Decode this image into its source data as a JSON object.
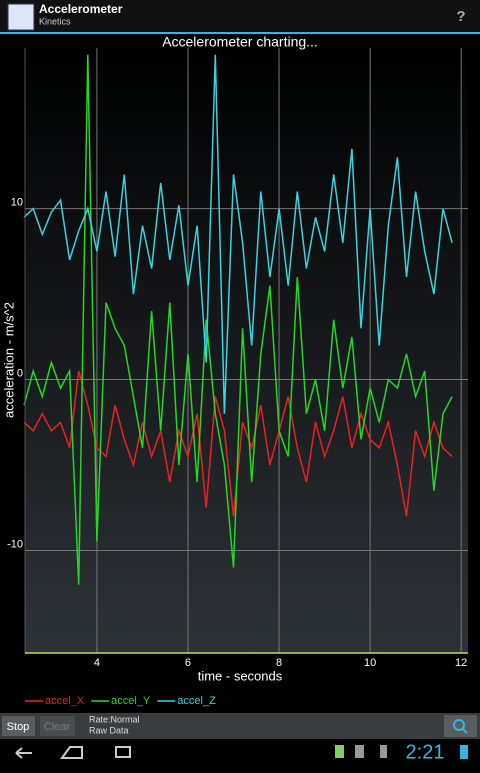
{
  "app_bar": {
    "title": "Accelerometer",
    "subtitle": "Kinetics",
    "help": "?"
  },
  "chart_data": {
    "type": "line",
    "title": "Accelerometer charting...",
    "x_label": "time - seconds",
    "y_label": "acceleration - m/s^2",
    "x": [
      2.4,
      2.6,
      2.8,
      3.0,
      3.2,
      3.4,
      3.6,
      3.8,
      4.0,
      4.2,
      4.4,
      4.6,
      4.8,
      5.0,
      5.2,
      5.4,
      5.6,
      5.8,
      6.0,
      6.2,
      6.4,
      6.6,
      6.8,
      7.0,
      7.2,
      7.4,
      7.6,
      7.8,
      8.0,
      8.2,
      8.4,
      8.6,
      8.8,
      9.0,
      9.2,
      9.4,
      9.6,
      9.8,
      10.0,
      10.2,
      10.4,
      10.6,
      10.8,
      11.0,
      11.2,
      11.4,
      11.6,
      11.8
    ],
    "series": [
      {
        "name": "accel_X",
        "color": "#e8221f",
        "values": [
          -2.5,
          -3,
          -2,
          -3,
          -2.5,
          -4,
          0.5,
          -1.5,
          -4,
          -4.5,
          -1.5,
          -3.5,
          -5,
          -2.5,
          -4.5,
          -3,
          -6,
          -3,
          -4.5,
          -2,
          -7.5,
          -1,
          -3,
          -8,
          -2.5,
          -4,
          -1.5,
          -5,
          -3,
          -1,
          -4,
          -6,
          -2.5,
          -4.5,
          -3,
          -1,
          -4,
          -2,
          -3.5,
          -4,
          -2.5,
          -5,
          -8,
          -3,
          -4.5,
          -2.5,
          -4,
          -4.5
        ]
      },
      {
        "name": "accel_Y",
        "color": "#22d822",
        "values": [
          -1.5,
          0.5,
          -1,
          1,
          -0.5,
          0.5,
          -12,
          19,
          -9.5,
          4.5,
          3,
          2,
          -1,
          -4,
          4,
          -3,
          4.5,
          -5,
          1.5,
          -6,
          3.5,
          -2,
          -5,
          -11,
          3,
          -6,
          1.5,
          5.5,
          -3,
          -4.5,
          6,
          -2,
          0,
          -3,
          3.5,
          -0.5,
          2.5,
          -3.5,
          -0.5,
          -2.5,
          0,
          -0.5,
          1.5,
          -1,
          0.5,
          -6.5,
          -2,
          -1
        ]
      },
      {
        "name": "accel_Z",
        "color": "#35d4e0",
        "values": [
          9.5,
          10,
          8.5,
          9.8,
          10.5,
          7,
          8.7,
          10,
          7.5,
          11,
          7.2,
          12,
          5,
          9,
          6.5,
          11.5,
          7,
          10.2,
          5.5,
          9,
          1,
          19,
          -2,
          12,
          8,
          2,
          11,
          6,
          10,
          5.5,
          11,
          6.5,
          9.5,
          7.5,
          12,
          8,
          13.5,
          3,
          10,
          2,
          9,
          13,
          6,
          11,
          7.5,
          5,
          10,
          8
        ]
      }
    ],
    "xlim": [
      2.42,
      12.15
    ],
    "ylim": [
      -16,
      19.4
    ],
    "xticks": [
      4,
      6,
      8,
      10,
      12
    ],
    "yticks": [
      -10,
      0,
      10
    ],
    "grid": true
  },
  "toolbar": {
    "stop": "Stop",
    "clear": "Clear",
    "rate": "Rate:Normal",
    "mode": "Raw Data"
  },
  "status": {
    "clock": "2:21"
  }
}
